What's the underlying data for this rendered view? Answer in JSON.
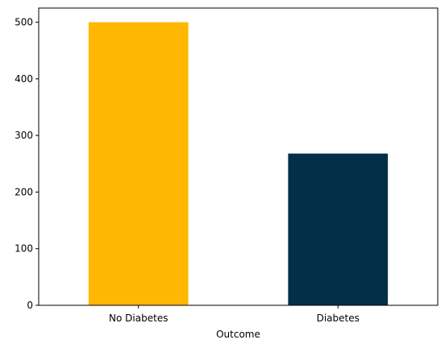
{
  "chart_data": {
    "type": "bar",
    "categories": [
      "No Diabetes",
      "Diabetes"
    ],
    "values": [
      500,
      268
    ],
    "colors": [
      "#FFB703",
      "#023047"
    ],
    "xlabel": "Outcome",
    "ylabel": "",
    "ylim": [
      0,
      525
    ],
    "yticks": [
      0,
      100,
      200,
      300,
      400,
      500
    ],
    "grid": false,
    "legend": false
  }
}
